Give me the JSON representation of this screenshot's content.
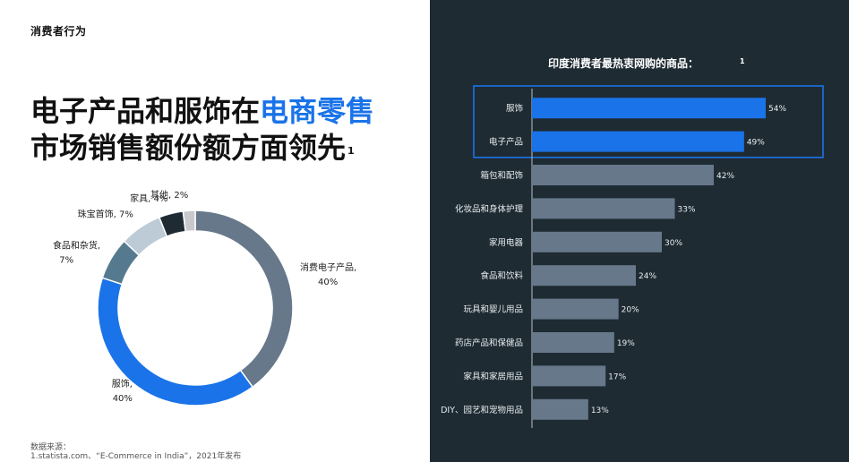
{
  "section_label": "消费者行为",
  "headline": {
    "part1": "电子产品和服饰在",
    "highlight": "电商零售",
    "part2": "市场销售额份额方面领先",
    "footnote": "1"
  },
  "source": {
    "label": "数据来源：",
    "line": "1.statista.com、“E-Commerce in India”，2021年发布"
  },
  "chart_data": [
    {
      "type": "pie",
      "donut": true,
      "categories": [
        "消费电子产品",
        "服饰",
        "食品和杂货",
        "珠宝首饰",
        "家具",
        "其他"
      ],
      "values": [
        40,
        40,
        7,
        7,
        4,
        2
      ],
      "value_labels": [
        "40%",
        "40%",
        "7%",
        "7%",
        "4%",
        "2%"
      ],
      "colors": [
        "#66788a",
        "#1a73e8",
        "#557a90",
        "#bccbd6",
        "#1f2b33",
        "#c7c9cc"
      ]
    },
    {
      "type": "bar",
      "orientation": "horizontal",
      "title": "印度消费者最热衷网购的商品：",
      "title_footnote": "1",
      "categories": [
        "服饰",
        "电子产品",
        "箱包和配饰",
        "化妆品和身体护理",
        "家用电器",
        "食品和饮料",
        "玩具和婴儿用品",
        "药店产品和保健品",
        "家具和家居用品",
        "DIY、园艺和宠物用品"
      ],
      "values": [
        54,
        49,
        42,
        33,
        30,
        24,
        20,
        19,
        17,
        13
      ],
      "value_labels": [
        "54%",
        "49%",
        "42%",
        "33%",
        "30%",
        "24%",
        "20%",
        "19%",
        "17%",
        "13%"
      ],
      "highlighted": [
        true,
        true,
        false,
        false,
        false,
        false,
        false,
        false,
        false,
        false
      ],
      "highlight_color": "#1a73e8",
      "bar_color": "#66788a",
      "xlim": [
        0,
        60
      ]
    }
  ]
}
